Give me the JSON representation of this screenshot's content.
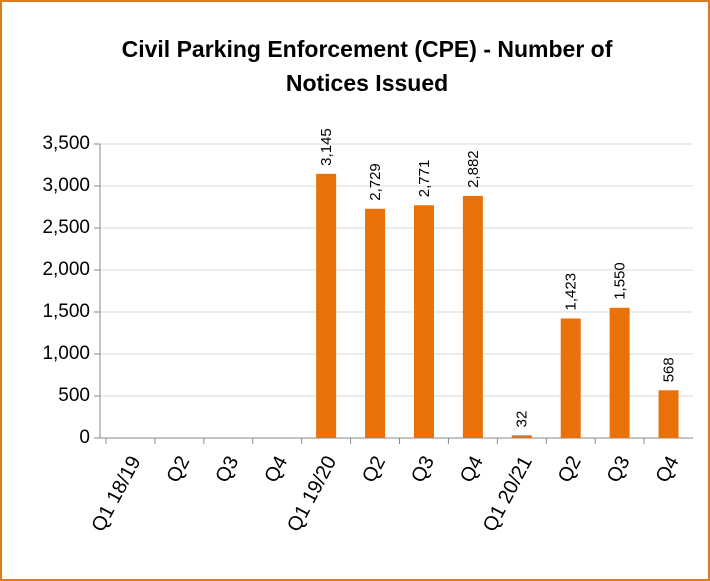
{
  "chart_data": {
    "type": "bar",
    "title": "Civil Parking Enforcement (CPE) - Number of Notices Issued",
    "categories": [
      "Q1 18/19",
      "Q2",
      "Q3",
      "Q4",
      "Q1 19/20",
      "Q2",
      "Q3",
      "Q4",
      "Q1 20/21",
      "Q2",
      "Q3",
      "Q4"
    ],
    "values": [
      null,
      null,
      null,
      null,
      3145,
      2729,
      2771,
      2882,
      32,
      1423,
      1550,
      568
    ],
    "value_labels": [
      null,
      null,
      null,
      null,
      "3,145",
      "2,729",
      "2,771",
      "2,882",
      "32",
      "1,423",
      "1,550",
      "568"
    ],
    "color": "#e8710a",
    "ylim": [
      0,
      3500
    ],
    "yticks": [
      0,
      500,
      {
        "value": 1000,
        "label": "1,000"
      },
      {
        "value": 1500,
        "label": "1,500"
      },
      {
        "value": 2000,
        "label": "2,000"
      },
      {
        "value": 2500,
        "label": "2,500"
      },
      {
        "value": 3000,
        "label": "3,000"
      },
      {
        "value": 3500,
        "label": "3,500"
      }
    ],
    "grid": true
  }
}
